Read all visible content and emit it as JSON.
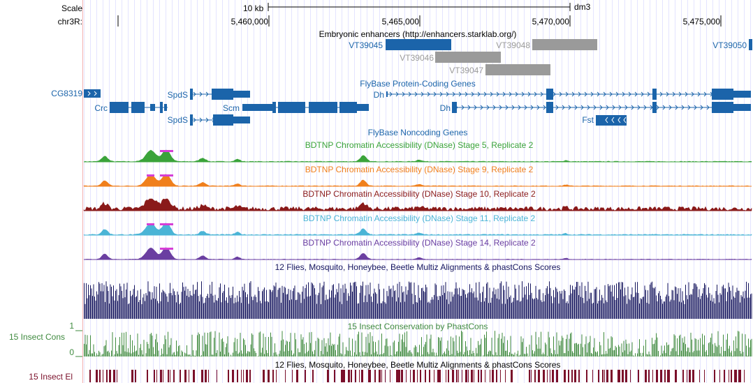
{
  "ruler": {
    "scale_label": "Scale",
    "chrom_label": "chr3R:",
    "scale_bar_text": "10 kb",
    "assembly": "dm3",
    "ticks": [
      "5,460,000",
      "5,465,000",
      "5,470,000",
      "5,475,000"
    ]
  },
  "tracks": {
    "enhancers": {
      "title": "Embryonic enhancers (http://enhancers.starklab.org/)",
      "items": [
        "VT39045",
        "VT39046",
        "VT39047",
        "VT39048",
        "VT39050"
      ]
    },
    "protein_coding": {
      "title": "FlyBase Protein-Coding Genes",
      "genes": [
        "CG8319",
        "Crc",
        "SpdS",
        "SpdS",
        "Scm",
        "Dh",
        "Dh",
        "Fst"
      ]
    },
    "noncoding": {
      "title": "FlyBase Noncoding Genes"
    },
    "dnase": [
      {
        "title": "BDTNP Chromatin Accessibility (DNase) Stage 5, Replicate 2",
        "color": "#3aa33a"
      },
      {
        "title": "BDTNP Chromatin Accessibility (DNase) Stage 9, Replicate 2",
        "color": "#f07f1c"
      },
      {
        "title": "BDTNP Chromatin Accessibility (DNase) Stage 10, Replicate 2",
        "color": "#8a1a1a"
      },
      {
        "title": "BDTNP Chromatin Accessibility (DNase) Stage 11, Replicate 2",
        "color": "#4ab4d6"
      },
      {
        "title": "BDTNP Chromatin Accessibility (DNase) Stage 14, Replicate 2",
        "color": "#6a3ea1"
      }
    ],
    "multiz": {
      "title": "12 Flies, Mosquito, Honeybee, Beetle Multiz Alignments & phastCons Scores"
    },
    "phastcons": {
      "title": "15 Insect Conservation by PhastCons",
      "side_label": "15 Insect Cons",
      "axis_max": "1",
      "axis_min": "0"
    },
    "elements": {
      "title": "12 Flies, Mosquito, Honeybee, Beetle Multiz Alignments & phastCons Scores",
      "side_label": "15 Insect El"
    }
  },
  "colors": {
    "gene": "#1b64aa",
    "enhancer_gray": "#9a9a9a",
    "multiz": "#14145e",
    "phastcons": "#3f8a3f",
    "elements": "#7a0f2a",
    "highlight": "#d63fd6"
  }
}
